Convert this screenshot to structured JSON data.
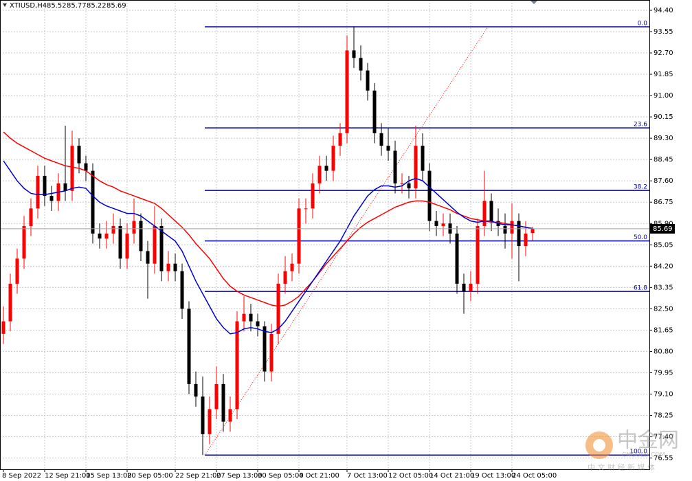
{
  "chart_data": {
    "type": "candlestick",
    "symbol": "XTIUSD,H4",
    "categories": [
      "8 Sep 2022",
      null,
      null,
      null,
      null,
      null,
      "12 Sep 21:00",
      null,
      null,
      null,
      null,
      null,
      "15 Sep 13:00",
      null,
      null,
      null,
      null,
      null,
      "20 Sep 05:00",
      null,
      null,
      null,
      null,
      null,
      null,
      "22 Sep 21:00",
      null,
      null,
      null,
      null,
      null,
      "27 Sep 13:00",
      null,
      null,
      null,
      null,
      null,
      "30 Sep 05:00",
      null,
      null,
      null,
      null,
      null,
      "4 Oct 21:00",
      null,
      null,
      null,
      null,
      null,
      null,
      "7 Oct 13:00",
      null,
      null,
      null,
      null,
      null,
      "12 Oct 05:00",
      null,
      null,
      null,
      null,
      null,
      "14 Oct 21:00",
      null,
      null,
      null,
      null,
      null,
      "19 Oct 13:00",
      null,
      null,
      null,
      null,
      null,
      "24 Oct 05:00",
      null,
      null,
      null
    ],
    "open": [
      81.5,
      82.0,
      83.5,
      84.5,
      85.8,
      86.5,
      87.8,
      87.0,
      86.8,
      87.5,
      87.2,
      89.0,
      88.3,
      88.0,
      85.5,
      85.3,
      85.5,
      85.8,
      84.5,
      85.5,
      86.0,
      84.8,
      84.3,
      85.8,
      84.0,
      84.3,
      84.0,
      82.5,
      79.5,
      79.0,
      77.5,
      78.5,
      79.5,
      78.0,
      78.5,
      82.0,
      82.3,
      82.0,
      81.8,
      80.0,
      81.5,
      83.5,
      84.0,
      84.3,
      86.5,
      86.5,
      87.5,
      88.2,
      88.0,
      89.0,
      89.5,
      92.8,
      92.5,
      92.0,
      91.2,
      89.5,
      89.0,
      88.8,
      87.5,
      87.5,
      87.3,
      89.0,
      88.0,
      86.0,
      85.8,
      85.9,
      85.5,
      83.5,
      83.2,
      83.5,
      85.8,
      86.8,
      86.0,
      85.8,
      85.5,
      86.0,
      85.0,
      85.52
    ],
    "high": [
      82.6,
      83.9,
      84.9,
      86.2,
      86.9,
      88.2,
      88.2,
      87.4,
      87.9,
      89.8,
      89.6,
      89.3,
      88.6,
      88.3,
      85.9,
      86.0,
      86.3,
      86.1,
      85.9,
      86.9,
      86.3,
      85.2,
      86.6,
      86.1,
      84.8,
      84.7,
      84.3,
      82.8,
      80.0,
      79.8,
      79.0,
      80.2,
      79.9,
      79.0,
      82.4,
      83.0,
      82.7,
      82.3,
      82.0,
      81.9,
      83.9,
      84.6,
      84.7,
      86.9,
      86.9,
      87.9,
      88.6,
      88.6,
      89.4,
      89.9,
      93.4,
      93.74,
      93.0,
      92.3,
      91.5,
      89.9,
      89.7,
      89.2,
      87.9,
      87.8,
      89.8,
      89.5,
      88.3,
      86.4,
      86.3,
      86.3,
      85.8,
      83.9,
      84.0,
      86.1,
      88.0,
      87.1,
      86.5,
      86.3,
      86.7,
      86.3,
      86.0,
      85.77
    ],
    "low": [
      81.1,
      81.6,
      83.1,
      84.1,
      85.4,
      86.1,
      86.6,
      86.4,
      86.4,
      86.8,
      86.8,
      87.9,
      87.6,
      85.1,
      84.9,
      84.9,
      85.1,
      84.1,
      84.1,
      85.1,
      84.4,
      82.9,
      83.9,
      83.6,
      83.6,
      83.6,
      82.1,
      79.1,
      78.6,
      76.67,
      77.1,
      78.1,
      77.6,
      77.6,
      78.1,
      81.6,
      81.6,
      81.4,
      79.6,
      79.6,
      81.1,
      83.1,
      83.6,
      83.9,
      85.9,
      86.1,
      87.1,
      87.6,
      87.6,
      88.6,
      89.1,
      92.1,
      91.6,
      90.8,
      89.1,
      88.6,
      88.4,
      87.1,
      87.1,
      86.9,
      86.9,
      87.6,
      85.6,
      85.4,
      85.4,
      85.1,
      83.1,
      82.3,
      82.8,
      83.1,
      85.4,
      85.6,
      85.4,
      84.9,
      84.5,
      83.6,
      84.6,
      85.22
    ],
    "close": [
      82.0,
      83.5,
      84.5,
      85.8,
      86.5,
      87.8,
      87.0,
      86.8,
      87.5,
      87.2,
      89.0,
      88.3,
      88.0,
      85.5,
      85.3,
      85.5,
      85.8,
      84.5,
      85.5,
      86.0,
      84.8,
      84.3,
      85.8,
      84.0,
      84.3,
      84.0,
      82.5,
      79.5,
      79.0,
      77.5,
      78.5,
      79.5,
      78.0,
      78.5,
      82.0,
      82.3,
      82.0,
      81.8,
      80.0,
      81.5,
      83.5,
      84.0,
      84.3,
      86.5,
      86.5,
      87.5,
      88.2,
      88.0,
      89.0,
      89.5,
      92.8,
      92.5,
      92.0,
      91.2,
      89.5,
      89.0,
      88.8,
      87.5,
      87.5,
      87.3,
      89.0,
      88.0,
      86.0,
      85.8,
      85.9,
      85.5,
      83.5,
      83.2,
      83.5,
      85.8,
      86.8,
      86.0,
      85.8,
      85.5,
      86.0,
      85.0,
      85.5,
      85.69
    ],
    "up_color": "#ff0000",
    "down_color": "#000000",
    "lines": [
      {
        "color": "#ff0000",
        "values": [
          89.55,
          89.3,
          89.1,
          88.95,
          88.8,
          88.65,
          88.5,
          88.4,
          88.3,
          88.2,
          88.15,
          88.1,
          88.0,
          87.8,
          87.6,
          87.45,
          87.35,
          87.2,
          87.1,
          87.0,
          86.9,
          86.8,
          86.7,
          86.5,
          86.25,
          86.0,
          85.75,
          85.45,
          85.1,
          84.8,
          84.5,
          84.1,
          83.7,
          83.4,
          83.2,
          83.05,
          82.95,
          82.85,
          82.75,
          82.65,
          82.6,
          82.65,
          82.8,
          83.0,
          83.3,
          83.6,
          83.95,
          84.3,
          84.6,
          84.9,
          85.2,
          85.5,
          85.75,
          85.95,
          86.1,
          86.25,
          86.4,
          86.55,
          86.65,
          86.75,
          86.8,
          86.8,
          86.75,
          86.65,
          86.55,
          86.45,
          86.3,
          86.2,
          86.1,
          86.05,
          86.0,
          85.95,
          85.95,
          85.9,
          85.85,
          85.8,
          85.75,
          85.7
        ]
      },
      {
        "color": "#0000cd",
        "values": [
          88.4,
          88.0,
          87.6,
          87.3,
          87.1,
          87.05,
          87.05,
          87.1,
          87.15,
          87.2,
          87.3,
          87.35,
          87.3,
          87.0,
          86.75,
          86.6,
          86.5,
          86.4,
          86.3,
          86.3,
          86.2,
          86.0,
          85.8,
          85.6,
          85.4,
          85.2,
          84.8,
          84.2,
          83.6,
          83.1,
          82.6,
          82.1,
          81.75,
          81.5,
          81.55,
          81.7,
          81.75,
          81.7,
          81.6,
          81.55,
          81.7,
          82.0,
          82.4,
          82.8,
          83.2,
          83.6,
          84.0,
          84.4,
          84.8,
          85.2,
          85.7,
          86.2,
          86.6,
          87.0,
          87.25,
          87.4,
          87.4,
          87.35,
          87.4,
          87.6,
          87.7,
          87.6,
          87.35,
          87.1,
          86.85,
          86.6,
          86.35,
          86.15,
          86.0,
          85.95,
          86.0,
          86.0,
          85.9,
          85.85,
          85.85,
          85.8,
          85.75,
          85.7
        ]
      }
    ],
    "ylim": [
      76.1,
      94.81
    ],
    "yticks": [
      {
        "value": 94.4,
        "label": "94.40"
      },
      93.55,
      {
        "value": 92.7,
        "label": "92.70"
      },
      91.85,
      {
        "value": 91,
        "label": "91.00"
      },
      90.15,
      {
        "value": 89.3,
        "label": "89.30"
      },
      88.45,
      {
        "value": 87.6,
        "label": "87.60"
      },
      86.75,
      {
        "value": 85.9,
        "label": "85.90"
      },
      85.05,
      {
        "value": 84.2,
        "label": "84.20"
      },
      83.35,
      {
        "value": 82.5,
        "label": "82.50"
      },
      81.65,
      {
        "value": 80.8,
        "label": "80.80"
      },
      79.95,
      {
        "value": 79.1,
        "label": "79.10"
      },
      78.25,
      {
        "value": 77.4,
        "label": "77.40"
      },
      76.55
    ],
    "grid": true,
    "fibonacci": {
      "color": "#0000a0",
      "high": 93.74,
      "low": 76.67,
      "levels": [
        {
          "value": 0,
          "label": "0.0"
        },
        {
          "value": 23.6,
          "label": "23.6"
        },
        {
          "value": 38.2,
          "label": "38.2"
        },
        {
          "value": 50,
          "label": "50.0"
        },
        {
          "value": 61.8,
          "label": "61.8"
        },
        {
          "value": 100,
          "label": "100.0"
        }
      ]
    },
    "watermark": {
      "title": "中金网",
      "domain": "CNGOLD.COM",
      "tagline": "中 文 财 经 新 媒 体"
    }
  }
}
